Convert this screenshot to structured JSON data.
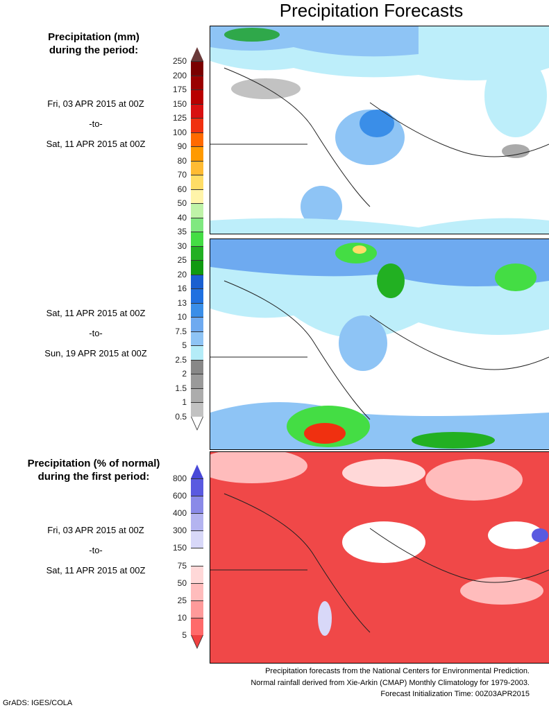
{
  "title": "Precipitation Forecasts",
  "panel1": {
    "header": [
      "Precipitation (mm)",
      "during the period:"
    ],
    "start": "Fri, 03 APR 2015 at 00Z",
    "sep": "-to-",
    "end": "Sat, 11 APR 2015 at 00Z"
  },
  "panel2": {
    "start": "Sat, 11 APR 2015 at 00Z",
    "sep": "-to-",
    "end": "Sun, 19 APR 2015 at 00Z"
  },
  "panel3": {
    "header": [
      "Precipitation (% of normal)",
      "during the first period:"
    ],
    "start": "Fri, 03 APR 2015 at 00Z",
    "sep": "-to-",
    "end": "Sat, 11 APR 2015 at 00Z"
  },
  "colorbar_mm": {
    "labels": [
      "250",
      "200",
      "175",
      "150",
      "125",
      "100",
      "90",
      "80",
      "70",
      "60",
      "50",
      "40",
      "35",
      "30",
      "25",
      "20",
      "16",
      "13",
      "10",
      "7.5",
      "5",
      "2.5",
      "2",
      "1.5",
      "1",
      "0.5"
    ],
    "colors": [
      "#7a0000",
      "#9a0000",
      "#b80000",
      "#d81010",
      "#f03010",
      "#ff6a00",
      "#ff9a00",
      "#ffbb33",
      "#ffdd66",
      "#fff4aa",
      "#bff3a8",
      "#80e880",
      "#44dd44",
      "#22b022",
      "#109a10",
      "#1a5fd0",
      "#2070e0",
      "#3a8ee8",
      "#6eaaf0",
      "#8ec4f5",
      "#b4ecf8",
      "#888888",
      "#9a9a9a",
      "#acacac",
      "#c2c2c2"
    ],
    "top_arrow": "#6a3a3a",
    "bottom_arrow": "#ffffff"
  },
  "colorbar_pct": {
    "labels": [
      "800",
      "600",
      "400",
      "300",
      "150",
      "75",
      "50",
      "25",
      "10",
      "5"
    ],
    "colors": [
      "#5a5ae0",
      "#8a8ae8",
      "#b4b4f0",
      "#d8d8f8",
      "#ffffff",
      "#ffd8d8",
      "#ffbcbc",
      "#ff9a9a",
      "#ff6a6a"
    ],
    "top_arrow": "#4848d8",
    "bottom_arrow": "#f04040"
  },
  "footer": [
    "Precipitation forecasts from the National Centers for Environmental Prediction.",
    "Normal rainfall derived from Xie-Arkin (CMAP) Monthly Climatology for 1979-2003.",
    "Forecast Initialization Time: 00Z03APR2015"
  ],
  "credit": "GrADS: IGES/COLA"
}
